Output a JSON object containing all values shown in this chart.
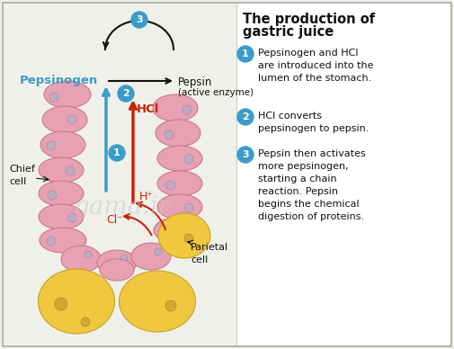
{
  "bg_color": "#f0f0eb",
  "border_color": "#aaaaaa",
  "title_line1": "The production of",
  "title_line2": "gastric juice",
  "title_fontsize": 10.5,
  "circle_color": "#3a9cc8",
  "pink_cell_color": "#e8a0b4",
  "pink_cell_edge": "#c87890",
  "yellow_cell_color": "#f0c840",
  "yellow_cell_edge": "#c8a020",
  "pink_dot_color": "#c0aac0",
  "pink_dot_edge": "#a090a0",
  "yellow_dot_color": "#d4a830",
  "yellow_dot_edge": "#b08820",
  "arrow_blue": "#3a9cc8",
  "arrow_red": "#cc2200",
  "arrow_black": "#111111",
  "text_blue": "#3a9cc8",
  "text_red": "#cc2200",
  "text_black": "#111111",
  "watermark_color": "#c8c8c8",
  "step_descriptions": [
    "Pepsinogen and HCl\nare introduced into the\nlumen of the stomach.",
    "HCl converts\npepsinogen to pepsin.",
    "Pepsin then activates\nmore pepsinogen,\nstarting a chain\nreaction. Pepsin\nbegins the chemical\ndigestion of proteins."
  ]
}
